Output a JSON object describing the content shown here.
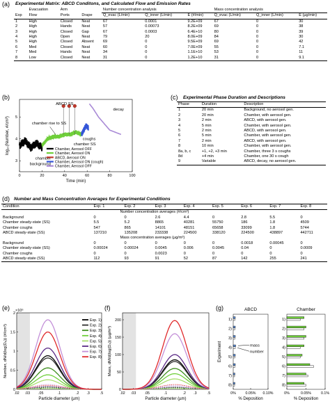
{
  "panel_a": {
    "letter": "(a)",
    "title": "Experimental Matrix: ABCD Conditons, and Calculated Flow and Emission Rates",
    "group_headers": [
      "Number concentration analysis",
      "Mass concentration analysis"
    ],
    "headers_top": [
      "",
      "Evacuation",
      "Arm",
      "",
      "",
      "",
      "",
      "",
      "",
      ""
    ],
    "headers": [
      "Exp",
      "Flow",
      "Ports",
      "Drape",
      "Q_evac (L/min)",
      "Q_inner (L/min)",
      "E (#/min)",
      "Q_evac (L/min)",
      "Q_inner (L/min)",
      "E (µg/min)"
    ],
    "rows": [
      [
        "1",
        "High",
        "Closed",
        "Neat",
        "67",
        "0.0001",
        "9.2E+09",
        "67",
        "0",
        "30"
      ],
      [
        "2",
        "High",
        "Hands",
        "Neat",
        "57",
        "0.00073",
        "8.2E+09",
        "69",
        "0",
        "38"
      ],
      [
        "3",
        "High",
        "Closed",
        "Gap",
        "67",
        "0.0003",
        "6.4E+10",
        "80",
        "0",
        "39"
      ],
      [
        "4",
        "High",
        "Open",
        "Neat",
        "79",
        "20",
        "8.0E+09",
        "84",
        "0",
        "30"
      ],
      [
        "5",
        "High",
        "Closed",
        "Absent",
        "69",
        "0",
        "9.5E+09",
        "69",
        "0",
        "42"
      ],
      [
        "6",
        "Med",
        "Closed",
        "Neat",
        "60",
        "0",
        "7.0E+09",
        "55",
        "0",
        "7.1"
      ],
      [
        "7",
        "Med",
        "Hands",
        "Neat",
        "34",
        "0",
        "1.1E+10",
        "53",
        "0",
        "11"
      ],
      [
        "8",
        "Low",
        "Closed",
        "Neat",
        "31",
        "0",
        "1.2E+10",
        "31",
        "0",
        "9.1"
      ]
    ]
  },
  "panel_b": {
    "letter": "(b)",
    "ylabel": "log₁₀(Number, #/cm³)",
    "xlabel": "Time (min)",
    "xticks": [
      "0",
      "20",
      "40",
      "60",
      "80",
      "100"
    ],
    "yticks": [
      "3",
      "4",
      "5"
    ],
    "annotations": {
      "abcd_ss": "ABCD SS",
      "decay": "decay",
      "rise": "chamber rise to SS",
      "chamber_ss": "chamber SS",
      "coughs": "coughs",
      "background": "chamber\nbackground"
    },
    "legend": [
      {
        "label": "Chamber, Aerosol OFF",
        "color": "#000000"
      },
      {
        "label": "Chamber, Aerosol ON",
        "color": "#6fcf3a"
      },
      {
        "label": "ABCD, Aerosol ON",
        "color": "#c0392b"
      },
      {
        "label": "Chamber, Aerosol ON (cough)",
        "color": "#3355d8"
      },
      {
        "label": "Chamber, Aerosol OFF",
        "color": "#a98ad6"
      }
    ]
  },
  "panel_c": {
    "letter": "(c)",
    "title": "Experimental Phase Duration and Descriptions",
    "headers": [
      "Phase",
      "Duration",
      "Description"
    ],
    "rows": [
      [
        "1",
        "20 min",
        "Background, no aerosol gen."
      ],
      [
        "2",
        "20 min",
        "Chamber, with aerosol gen."
      ],
      [
        "3",
        "2 min",
        "ABCD, with aerosol gen."
      ],
      [
        "4",
        "5 min",
        "Chamber, with aerosol gen."
      ],
      [
        "5",
        "2 min",
        "ABCD, with aerosol gen."
      ],
      [
        "6",
        "5 min",
        "Chamber, with aerosol gen."
      ],
      [
        "7",
        "2 min",
        "ABCD, with aerosol gen."
      ],
      [
        "8",
        "10 min",
        "Chamber, with aerosol gen."
      ],
      [
        "8a, b, c",
        "+1, +2, +3 min",
        "Chamber, three 3 s coughs"
      ],
      [
        "8d",
        "+4 min",
        "Chamber, one 30 s cough"
      ],
      [
        "9",
        "Variable",
        "ABCD, decay, no aerosol gen."
      ]
    ]
  },
  "panel_d": {
    "letter": "(d)",
    "title": "Number and Mass Concentration Averages for Experimental Conditions",
    "headers": [
      "Condition",
      "Exp. 1",
      "Exp. 2",
      "Exp. 3",
      "Exp. 4",
      "Exp. 5",
      "Exp. 6",
      "Exp. 7",
      "Exp. 8"
    ],
    "number_label": "Number concentration averages (#/cm³)",
    "number_rows": [
      [
        "Background",
        "0",
        "0",
        "2.6",
        "4.4",
        "0",
        "2.8",
        "5.5",
        "0"
      ],
      [
        "Chamber steady-state (SS)",
        "5.5",
        "5.2",
        "8865",
        "40281",
        "55750",
        "186",
        "1.8",
        "4509"
      ],
      [
        "Chamber coughs",
        "547",
        "865",
        "14101",
        "48151",
        "65658",
        "33099",
        "1.8",
        "5744"
      ],
      [
        "ABCD steady-state (SS)",
        "137210",
        "135208",
        "233338",
        "224500",
        "338120",
        "224500",
        "438897",
        "442711"
      ]
    ],
    "mass_label": "Mass concentration averages (µg/m³)",
    "mass_rows": [
      [
        "Background",
        "0",
        "0",
        "0",
        "0",
        "0",
        "0.0018",
        "0.00045",
        "0"
      ],
      [
        "Chamber steady-state (SS)",
        "0.00024",
        "0.00024",
        "0.0045",
        "0.006",
        "0.0045",
        "0.04",
        "0",
        "0.0009"
      ],
      [
        "Chamber coughs",
        "0",
        "0",
        "0.0023",
        "0",
        "0",
        "0",
        "0",
        "0"
      ],
      [
        "ABCD steady-state (SS)",
        "112",
        "93",
        "91",
        "52",
        "87",
        "142",
        "255",
        "241"
      ]
    ]
  },
  "panel_e": {
    "letter": "(e)",
    "ylabel": "Number, dN/d(log(Dₚ)) (#/cm³)",
    "xlabel": "Particle diameter (µm)",
    "multiplier": "×10⁶",
    "xticks": [
      ".02",
      ".03",
      ".05",
      ".1",
      ".2",
      ".3",
      ".5"
    ],
    "yticks": [
      "0",
      "0.5",
      "1",
      "1.5",
      "2"
    ],
    "legend": [
      "Exp. 1)",
      "Exp. 2)",
      "Exp. 3)",
      "Exp. 4)",
      "Exp. 5)",
      "Exp. 6)",
      "Exp. 7)",
      "Exp. 8)"
    ]
  },
  "panel_f": {
    "letter": "(f)",
    "ylabel": "Mass, dM/d(log(Dₚ)) (µg/m³)",
    "xlabel": "Particle diameter (µm)",
    "xticks": [
      ".02",
      ".03",
      ".05",
      ".1",
      ".2",
      ".3",
      ".5"
    ],
    "yticks": [
      "0",
      "50",
      "100",
      "150",
      "200"
    ]
  },
  "panel_g": {
    "letter": "(g)",
    "titles": [
      "ABCD",
      "Chamber"
    ],
    "ylabel": "Experiment",
    "xlabel": "% Deposition",
    "ticks_abcd": [
      "0%",
      "0.05%",
      "0.10%"
    ],
    "ticks_chamber": [
      "0%",
      "0.05%",
      "0.1%"
    ],
    "row_labels": [
      "1)",
      "2)",
      "3)",
      "4)",
      "5)",
      "6)",
      "7)",
      "8)"
    ],
    "mass_label": "mass",
    "number_label": "number"
  },
  "colors": {
    "exp": [
      "#000000",
      "#2e2e2e",
      "#3f8f1f",
      "#6fcf3a",
      "#a9dd6e",
      "#5b2a86",
      "#c38fd8",
      "#e0282a"
    ],
    "mass_bar": "#6fcf3a",
    "number_bar": "#ffffff",
    "abcd_bar": "#5b8dd6"
  },
  "chart_data": [
    {
      "type": "line",
      "panel": "b",
      "xlabel": "Time (min)",
      "ylabel": "log10(Number, #/cm3)",
      "xlim": [
        0,
        100
      ],
      "ylim": [
        2.5,
        5.8
      ],
      "series": [
        {
          "name": "Chamber, Aerosol OFF",
          "x": [
            0,
            5,
            10,
            15,
            20
          ],
          "y": [
            3.7,
            3.9,
            3.6,
            3.8,
            3.6
          ]
        },
        {
          "name": "Chamber, Aerosol ON",
          "x": [
            20,
            25,
            30,
            35,
            40,
            45,
            50,
            55
          ],
          "y": [
            3.7,
            4.0,
            4.1,
            4.1,
            4.2,
            4.2,
            4.3,
            4.2
          ]
        },
        {
          "name": "ABCD, Aerosol ON",
          "x": [
            39,
            44,
            49
          ],
          "y": [
            5.5,
            5.5,
            5.5
          ]
        },
        {
          "name": "Chamber, Aerosol ON (cough)",
          "x": [
            55,
            57,
            59,
            61
          ],
          "y": [
            4.2,
            4.4,
            4.6,
            4.5
          ]
        },
        {
          "name": "Chamber, Aerosol OFF",
          "x": [
            62,
            65,
            70,
            75,
            80,
            85,
            90
          ],
          "y": [
            5.6,
            5.4,
            5.0,
            4.7,
            4.4,
            4.3,
            4.2
          ]
        }
      ]
    },
    {
      "type": "line",
      "panel": "e",
      "xlabel": "Particle diameter (µm)",
      "ylabel": "Number, dN/d(log(Dp)) (#/cm3)",
      "log_x": true,
      "xlim": [
        0.02,
        0.5
      ],
      "ylim": [
        0,
        2000000
      ],
      "peak_x": 0.065,
      "series": [
        {
          "name": "Exp. 1)",
          "peak": 880000
        },
        {
          "name": "Exp. 2)",
          "peak": 820000
        },
        {
          "name": "Exp. 3)",
          "peak": 560000
        },
        {
          "name": "Exp. 4)",
          "peak": 380000
        },
        {
          "name": "Exp. 5)",
          "peak": 250000
        },
        {
          "name": "Exp. 6)",
          "peak": 1080000
        },
        {
          "name": "Exp. 7)",
          "peak": 1820000
        },
        {
          "name": "Exp. 8)",
          "peak": 1500000
        }
      ]
    },
    {
      "type": "line",
      "panel": "f",
      "xlabel": "Particle diameter (µm)",
      "ylabel": "Mass, dM/d(log(Dp)) (µg/m3)",
      "log_x": true,
      "xlim": [
        0.02,
        0.5
      ],
      "ylim": [
        0,
        220
      ],
      "peak_x": 0.14,
      "series": [
        {
          "name": "Exp. 1)",
          "peak": 85
        },
        {
          "name": "Exp. 2)",
          "peak": 80
        },
        {
          "name": "Exp. 3)",
          "peak": 60
        },
        {
          "name": "Exp. 4)",
          "peak": 45
        },
        {
          "name": "Exp. 5)",
          "peak": 30
        },
        {
          "name": "Exp. 6)",
          "peak": 100
        },
        {
          "name": "Exp. 7)",
          "peak": 160
        },
        {
          "name": "Exp. 8)",
          "peak": 198
        }
      ]
    },
    {
      "type": "bar",
      "panel": "g",
      "categories": [
        "1)",
        "2)",
        "3)",
        "4)",
        "5)",
        "6)",
        "7)",
        "8)"
      ],
      "series": [
        {
          "name": "mass",
          "group": "ABCD",
          "values": [
            0.006,
            0.006,
            0.006,
            0.007,
            0.006,
            0.006,
            0.005,
            0.005
          ]
        },
        {
          "name": "number",
          "group": "ABCD",
          "values": [
            0.005,
            0.005,
            0.005,
            0.006,
            0.005,
            0.005,
            0.004,
            0.004
          ]
        },
        {
          "name": "mass",
          "group": "Chamber",
          "values": [
            0.045,
            0.05,
            0.05,
            0.045,
            0.04,
            0.06,
            0.05,
            0.045
          ]
        },
        {
          "name": "number",
          "group": "Chamber",
          "values": [
            0.035,
            0.045,
            0.045,
            0.035,
            0.035,
            0.07,
            0.055,
            0.05
          ]
        }
      ]
    }
  ]
}
